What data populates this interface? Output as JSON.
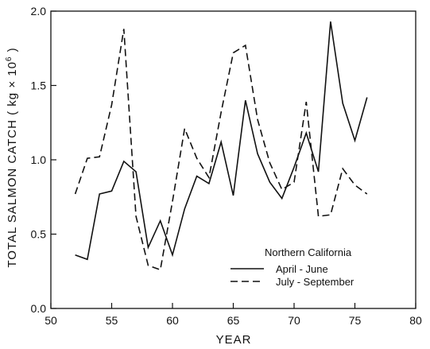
{
  "chart_data": {
    "type": "line",
    "title": "",
    "xlabel": "YEAR",
    "ylabel": "TOTAL SALMON CATCH ( kg × 10",
    "ylabel_sup": "6",
    "ylabel_close": " )",
    "xlim": [
      50,
      80
    ],
    "ylim": [
      0.0,
      2.0
    ],
    "xticks": [
      50,
      55,
      60,
      65,
      70,
      75,
      80
    ],
    "yticks": [
      0.0,
      0.5,
      1.0,
      1.5,
      2.0
    ],
    "xtick_labels": [
      "50",
      "55",
      "60",
      "65",
      "70",
      "75",
      "80"
    ],
    "ytick_labels": [
      "0.0",
      "0.5",
      "1.0",
      "1.5",
      "2.0"
    ],
    "grid": false,
    "legend_position": "bottom-right",
    "legend_title": "Northern California",
    "series": [
      {
        "name": "April - June",
        "style": "solid",
        "x": [
          52,
          53,
          54,
          55,
          56,
          57,
          58,
          59,
          60,
          61,
          62,
          63,
          64,
          65,
          66,
          67,
          68,
          69,
          70,
          71,
          72,
          73,
          74,
          75,
          76
        ],
        "y": [
          0.36,
          0.33,
          0.77,
          0.79,
          0.99,
          0.92,
          0.41,
          0.59,
          0.36,
          0.67,
          0.89,
          0.84,
          1.12,
          0.76,
          1.4,
          1.04,
          0.85,
          0.74,
          0.95,
          1.18,
          0.92,
          1.93,
          1.38,
          1.13,
          1.42
        ]
      },
      {
        "name": "July - September",
        "style": "dashed",
        "x": [
          52,
          53,
          54,
          55,
          56,
          57,
          58,
          59,
          60,
          61,
          62,
          63,
          64,
          65,
          66,
          67,
          68,
          69,
          70,
          71,
          72,
          73,
          74,
          75,
          76
        ],
        "y": [
          0.77,
          1.01,
          1.02,
          1.37,
          1.88,
          0.62,
          0.29,
          0.26,
          0.72,
          1.21,
          1.01,
          0.88,
          1.32,
          1.72,
          1.77,
          1.27,
          0.98,
          0.8,
          0.85,
          1.39,
          0.62,
          0.63,
          0.94,
          0.83,
          0.77
        ]
      }
    ]
  }
}
